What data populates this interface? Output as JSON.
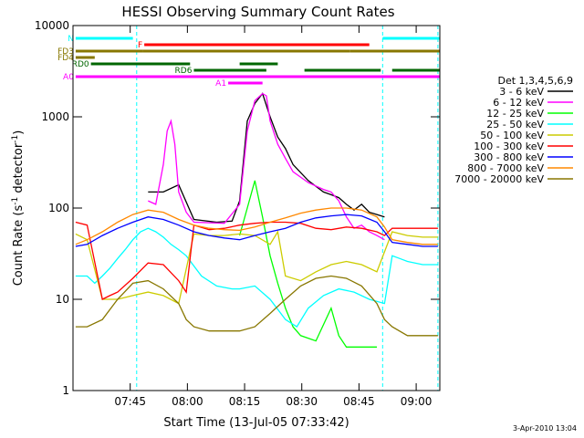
{
  "chart_data": {
    "type": "line",
    "title": "HESSI Observing Summary Count Rates",
    "xlabel": "Start Time (13-Jul-05 07:33:42)",
    "ylabel_main": "Count Rate (s",
    "ylabel_sup1": "-1",
    "ylabel_mid": " detector",
    "ylabel_sup2": "-1",
    "ylabel_end": ")",
    "y_scale": "log",
    "ylim": [
      1,
      10000
    ],
    "xlim_minutes": [
      -3.7,
      92.5
    ],
    "x_ticks": [
      {
        "t": 11.3,
        "label": "07:45"
      },
      {
        "t": 26.3,
        "label": "08:00"
      },
      {
        "t": 41.3,
        "label": "08:15"
      },
      {
        "t": 56.3,
        "label": "08:30"
      },
      {
        "t": 71.3,
        "label": "08:45"
      },
      {
        "t": 86.3,
        "label": "09:00"
      }
    ],
    "y_ticks": [
      {
        "v": 1,
        "label": "1"
      },
      {
        "v": 10,
        "label": "10"
      },
      {
        "v": 100,
        "label": "100"
      },
      {
        "v": 1000,
        "label": "1000"
      },
      {
        "v": 10000,
        "label": "10000"
      }
    ],
    "legend_title": "Det 1,3,4,5,6,9",
    "legend_position": "right",
    "series": [
      {
        "name": "3 - 6 keV",
        "color": "#000000",
        "points": [
          [
            16,
            150
          ],
          [
            20,
            150
          ],
          [
            24,
            180
          ],
          [
            28,
            75
          ],
          [
            34,
            70
          ],
          [
            38,
            72
          ],
          [
            40,
            120
          ],
          [
            42,
            900
          ],
          [
            44,
            1400
          ],
          [
            46,
            1800
          ],
          [
            48,
            1000
          ],
          [
            50,
            600
          ],
          [
            52,
            450
          ],
          [
            54,
            300
          ],
          [
            58,
            200
          ],
          [
            62,
            150
          ],
          [
            64,
            140
          ],
          [
            66,
            130
          ],
          [
            68,
            110
          ],
          [
            70,
            95
          ],
          [
            72,
            110
          ],
          [
            74,
            90
          ],
          [
            76,
            85
          ],
          [
            78,
            80
          ]
        ]
      },
      {
        "name": "6 - 12 keV",
        "color": "#ff00ff",
        "points": [
          [
            16,
            120
          ],
          [
            18,
            110
          ],
          [
            20,
            300
          ],
          [
            21,
            700
          ],
          [
            22,
            900
          ],
          [
            23,
            500
          ],
          [
            24,
            150
          ],
          [
            26,
            90
          ],
          [
            28,
            70
          ],
          [
            36,
            68
          ],
          [
            40,
            110
          ],
          [
            42,
            700
          ],
          [
            44,
            1500
          ],
          [
            46,
            1800
          ],
          [
            47,
            1700
          ],
          [
            48,
            900
          ],
          [
            50,
            500
          ],
          [
            52,
            350
          ],
          [
            54,
            250
          ],
          [
            58,
            190
          ],
          [
            62,
            160
          ],
          [
            64,
            150
          ],
          [
            66,
            120
          ],
          [
            68,
            80
          ],
          [
            70,
            60
          ],
          [
            72,
            65
          ],
          [
            74,
            55
          ],
          [
            76,
            50
          ],
          [
            78,
            45
          ]
        ]
      },
      {
        "name": "12 - 25 keV",
        "color": "#00ff00",
        "points": [
          [
            40,
            50
          ],
          [
            42,
            100
          ],
          [
            44,
            200
          ],
          [
            46,
            80
          ],
          [
            48,
            30
          ],
          [
            50,
            15
          ],
          [
            52,
            8
          ],
          [
            54,
            5
          ],
          [
            56,
            4
          ],
          [
            60,
            3.5
          ],
          [
            64,
            8
          ],
          [
            66,
            4
          ],
          [
            68,
            3
          ],
          [
            72,
            3
          ],
          [
            76,
            3
          ]
        ]
      },
      {
        "name": "25 - 50 keV",
        "color": "#00ffff",
        "points": [
          [
            -3,
            18
          ],
          [
            0,
            18
          ],
          [
            2,
            15
          ],
          [
            4,
            18
          ],
          [
            6,
            22
          ],
          [
            8,
            28
          ],
          [
            10,
            35
          ],
          [
            12,
            45
          ],
          [
            14,
            55
          ],
          [
            16,
            60
          ],
          [
            18,
            55
          ],
          [
            20,
            48
          ],
          [
            22,
            40
          ],
          [
            24,
            35
          ],
          [
            26,
            30
          ],
          [
            30,
            18
          ],
          [
            34,
            14
          ],
          [
            38,
            13
          ],
          [
            40,
            13
          ],
          [
            44,
            14
          ],
          [
            48,
            10
          ],
          [
            52,
            6
          ],
          [
            55,
            5
          ],
          [
            58,
            8
          ],
          [
            62,
            11
          ],
          [
            66,
            13
          ],
          [
            70,
            12
          ],
          [
            74,
            10
          ],
          [
            78,
            9
          ],
          [
            80,
            30
          ],
          [
            82,
            28
          ],
          [
            84,
            26
          ],
          [
            88,
            24
          ],
          [
            92,
            24
          ]
        ]
      },
      {
        "name": "50 - 100 keV",
        "color": "#cccc00",
        "points": [
          [
            -3,
            52
          ],
          [
            0,
            45
          ],
          [
            4,
            10
          ],
          [
            8,
            10
          ],
          [
            12,
            11
          ],
          [
            16,
            12
          ],
          [
            20,
            11
          ],
          [
            24,
            9
          ],
          [
            28,
            52
          ],
          [
            32,
            50
          ],
          [
            36,
            50
          ],
          [
            40,
            52
          ],
          [
            44,
            50
          ],
          [
            48,
            40
          ],
          [
            50,
            55
          ],
          [
            52,
            18
          ],
          [
            56,
            16
          ],
          [
            60,
            20
          ],
          [
            64,
            24
          ],
          [
            68,
            26
          ],
          [
            72,
            24
          ],
          [
            76,
            20
          ],
          [
            80,
            55
          ],
          [
            84,
            50
          ],
          [
            88,
            48
          ],
          [
            92,
            48
          ]
        ]
      },
      {
        "name": "100 - 300 keV",
        "color": "#ff0000",
        "points": [
          [
            -3,
            70
          ],
          [
            0,
            65
          ],
          [
            4,
            10
          ],
          [
            6,
            11
          ],
          [
            8,
            12
          ],
          [
            12,
            17
          ],
          [
            16,
            25
          ],
          [
            20,
            24
          ],
          [
            24,
            16
          ],
          [
            26,
            12
          ],
          [
            28,
            65
          ],
          [
            32,
            58
          ],
          [
            36,
            60
          ],
          [
            40,
            65
          ],
          [
            44,
            68
          ],
          [
            48,
            70
          ],
          [
            52,
            70
          ],
          [
            56,
            68
          ],
          [
            60,
            60
          ],
          [
            64,
            58
          ],
          [
            68,
            62
          ],
          [
            72,
            60
          ],
          [
            76,
            55
          ],
          [
            78,
            50
          ],
          [
            80,
            60
          ],
          [
            84,
            60
          ],
          [
            88,
            60
          ],
          [
            92,
            60
          ]
        ]
      },
      {
        "name": "300 - 800 keV",
        "color": "#0000ff",
        "points": [
          [
            -3,
            38
          ],
          [
            0,
            40
          ],
          [
            4,
            50
          ],
          [
            8,
            60
          ],
          [
            12,
            70
          ],
          [
            16,
            80
          ],
          [
            20,
            75
          ],
          [
            24,
            65
          ],
          [
            28,
            55
          ],
          [
            32,
            50
          ],
          [
            36,
            47
          ],
          [
            40,
            45
          ],
          [
            44,
            50
          ],
          [
            48,
            55
          ],
          [
            52,
            60
          ],
          [
            56,
            70
          ],
          [
            60,
            78
          ],
          [
            64,
            82
          ],
          [
            68,
            85
          ],
          [
            72,
            82
          ],
          [
            76,
            70
          ],
          [
            78,
            55
          ],
          [
            80,
            42
          ],
          [
            84,
            40
          ],
          [
            88,
            38
          ],
          [
            92,
            38
          ]
        ]
      },
      {
        "name": "800 - 7000 keV",
        "color": "#ff8800",
        "points": [
          [
            -3,
            40
          ],
          [
            0,
            45
          ],
          [
            4,
            55
          ],
          [
            8,
            70
          ],
          [
            12,
            85
          ],
          [
            16,
            95
          ],
          [
            20,
            90
          ],
          [
            24,
            75
          ],
          [
            28,
            65
          ],
          [
            32,
            60
          ],
          [
            36,
            58
          ],
          [
            40,
            57
          ],
          [
            44,
            62
          ],
          [
            48,
            70
          ],
          [
            52,
            78
          ],
          [
            56,
            88
          ],
          [
            60,
            95
          ],
          [
            64,
            100
          ],
          [
            68,
            100
          ],
          [
            72,
            95
          ],
          [
            76,
            80
          ],
          [
            78,
            62
          ],
          [
            80,
            45
          ],
          [
            84,
            42
          ],
          [
            88,
            40
          ],
          [
            92,
            40
          ]
        ]
      },
      {
        "name": "7000 - 20000 keV",
        "color": "#887700",
        "points": [
          [
            -3,
            5
          ],
          [
            0,
            5
          ],
          [
            4,
            6
          ],
          [
            8,
            10
          ],
          [
            12,
            15
          ],
          [
            16,
            16
          ],
          [
            20,
            13
          ],
          [
            24,
            9
          ],
          [
            26,
            6
          ],
          [
            28,
            5
          ],
          [
            32,
            4.5
          ],
          [
            36,
            4.5
          ],
          [
            40,
            4.5
          ],
          [
            44,
            5
          ],
          [
            48,
            7
          ],
          [
            52,
            10
          ],
          [
            56,
            14
          ],
          [
            60,
            17
          ],
          [
            64,
            18
          ],
          [
            68,
            17
          ],
          [
            72,
            14
          ],
          [
            76,
            9
          ],
          [
            78,
            6
          ],
          [
            80,
            5
          ],
          [
            84,
            4
          ],
          [
            88,
            4
          ],
          [
            92,
            4
          ]
        ]
      }
    ],
    "flag_bars": [
      {
        "label": "N",
        "color": "#00ffff",
        "segments": [
          [
            -3,
            12
          ],
          [
            77.5,
            92.5
          ]
        ]
      },
      {
        "label": "F",
        "color": "#ff0000",
        "segments": [
          [
            15,
            74
          ]
        ]
      },
      {
        "label": "FD3",
        "color": "#887700",
        "segments": [
          [
            -3,
            14.5
          ],
          [
            14.5,
            69
          ],
          [
            69,
            92.5
          ]
        ]
      },
      {
        "label": "FD4",
        "color": "#887700",
        "segments": [
          [
            -3,
            2
          ]
        ]
      },
      {
        "label": "RD0",
        "color": "#006600",
        "segments": [
          [
            1,
            27
          ],
          [
            40,
            50
          ]
        ]
      },
      {
        "label": "RD6",
        "color": "#006600",
        "segments": [
          [
            28,
            47
          ],
          [
            57,
            77
          ],
          [
            80,
            92.5
          ]
        ]
      },
      {
        "label": "A0",
        "color": "#ff00ff",
        "segments": [
          [
            -3,
            92.5
          ]
        ]
      },
      {
        "label": "A1",
        "color": "#ff00ff",
        "segments": [
          [
            37,
            46
          ]
        ]
      }
    ],
    "vlines_minutes": [
      13.0,
      77.5,
      92.0
    ],
    "footer_date": "3-Apr-2010 13:04"
  }
}
